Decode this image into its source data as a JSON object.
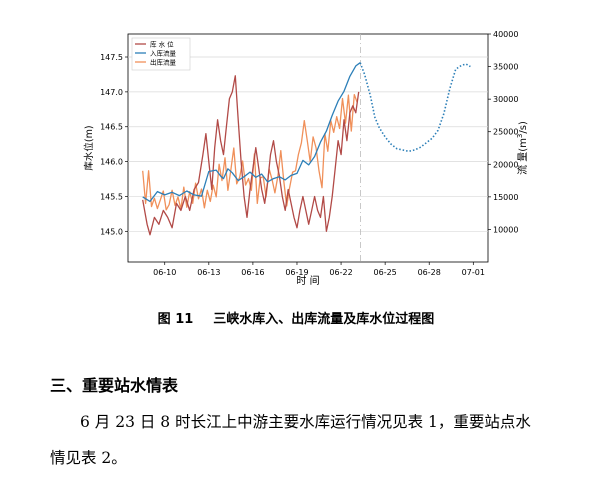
{
  "figure": {
    "number": "图 11",
    "title": "三峡水库入、出库流量及库水位过程图"
  },
  "section_heading": "三、重要站水情表",
  "paragraph_line1": "6 月 23 日 8 时长江上中游主要水库运行情况见表 1，重要站点水",
  "paragraph_line2": "情见表 2。",
  "chart_data": {
    "type": "line",
    "xlabel": "时 间",
    "ylabel_left": "库水位(m)",
    "ylabel_right_prefix": "流 量(m",
    "ylabel_right_sup": "3",
    "ylabel_right_suffix": "/s)",
    "x_range_days": [
      7.5,
      32.0
    ],
    "x_ticks": [
      {
        "label": "06-10",
        "day": 10
      },
      {
        "label": "06-13",
        "day": 13
      },
      {
        "label": "06-16",
        "day": 16
      },
      {
        "label": "06-19",
        "day": 19
      },
      {
        "label": "06-22",
        "day": 22
      },
      {
        "label": "06-25",
        "day": 25
      },
      {
        "label": "06-28",
        "day": 28
      },
      {
        "label": "07-01",
        "day": 31
      }
    ],
    "ylim_left": [
      144.56,
      147.83
    ],
    "yticks_left": [
      "145.0",
      "145.5",
      "146.0",
      "146.5",
      "147.0",
      "147.5"
    ],
    "ylim_right": [
      5000,
      40000
    ],
    "yticks_right": [
      "10000",
      "15000",
      "20000",
      "25000",
      "30000",
      "35000",
      "40000"
    ],
    "forecast_start_day": 23.33,
    "grid": true,
    "legend_position": "top-left",
    "colors": {
      "water_level": "#b24a47",
      "inflow": "#2c7fb8",
      "outflow": "#f0905a",
      "forecast": "#2c7fb8"
    },
    "legend": [
      {
        "key": "water_level",
        "label": "库 水 位"
      },
      {
        "key": "inflow",
        "label": "入库流量"
      },
      {
        "key": "outflow",
        "label": "出库流量"
      }
    ],
    "series_water_level": [
      [
        8.5,
        145.45
      ],
      [
        8.8,
        145.1
      ],
      [
        9.0,
        144.95
      ],
      [
        9.3,
        145.2
      ],
      [
        9.6,
        145.1
      ],
      [
        9.9,
        145.3
      ],
      [
        10.2,
        145.2
      ],
      [
        10.5,
        145.05
      ],
      [
        10.8,
        145.4
      ],
      [
        11.1,
        145.3
      ],
      [
        11.4,
        145.5
      ],
      [
        11.7,
        145.3
      ],
      [
        12.0,
        145.6
      ],
      [
        12.3,
        145.7
      ],
      [
        12.6,
        146.1
      ],
      [
        12.8,
        146.4
      ],
      [
        13.0,
        146.0
      ],
      [
        13.2,
        145.6
      ],
      [
        13.4,
        146.2
      ],
      [
        13.6,
        146.6
      ],
      [
        13.8,
        146.3
      ],
      [
        14.0,
        146.1
      ],
      [
        14.2,
        146.5
      ],
      [
        14.4,
        146.9
      ],
      [
        14.6,
        147.0
      ],
      [
        14.8,
        147.23
      ],
      [
        15.0,
        146.6
      ],
      [
        15.2,
        146.0
      ],
      [
        15.4,
        145.5
      ],
      [
        15.6,
        145.2
      ],
      [
        15.8,
        145.6
      ],
      [
        16.0,
        145.9
      ],
      [
        16.2,
        146.2
      ],
      [
        16.4,
        145.9
      ],
      [
        16.6,
        145.6
      ],
      [
        16.8,
        145.4
      ],
      [
        17.0,
        145.7
      ],
      [
        17.2,
        146.1
      ],
      [
        17.4,
        146.3
      ],
      [
        17.6,
        146.0
      ],
      [
        17.8,
        145.8
      ],
      [
        18.0,
        145.5
      ],
      [
        18.2,
        145.3
      ],
      [
        18.4,
        145.6
      ],
      [
        18.6,
        145.4
      ],
      [
        18.8,
        145.2
      ],
      [
        19.0,
        145.05
      ],
      [
        19.2,
        145.3
      ],
      [
        19.4,
        145.5
      ],
      [
        19.6,
        145.3
      ],
      [
        19.8,
        145.1
      ],
      [
        20.0,
        145.3
      ],
      [
        20.2,
        145.5
      ],
      [
        20.4,
        145.3
      ],
      [
        20.6,
        145.2
      ],
      [
        20.8,
        145.5
      ],
      [
        21.0,
        145.0
      ],
      [
        21.2,
        145.2
      ],
      [
        21.4,
        145.5
      ],
      [
        21.6,
        145.9
      ],
      [
        21.8,
        146.3
      ],
      [
        22.0,
        146.1
      ],
      [
        22.2,
        146.6
      ],
      [
        22.4,
        146.3
      ],
      [
        22.6,
        146.7
      ],
      [
        22.8,
        146.8
      ],
      [
        23.0,
        146.7
      ],
      [
        23.2,
        147.0
      ]
    ],
    "series_inflow": [
      [
        8.5,
        15000
      ],
      [
        9.0,
        14300
      ],
      [
        9.5,
        15800
      ],
      [
        10.0,
        15300
      ],
      [
        10.5,
        15700
      ],
      [
        11.0,
        15200
      ],
      [
        11.5,
        15900
      ],
      [
        12.0,
        15300
      ],
      [
        12.5,
        15100
      ],
      [
        13.0,
        18900
      ],
      [
        13.5,
        19100
      ],
      [
        13.8,
        18200
      ],
      [
        14.0,
        17800
      ],
      [
        14.3,
        19300
      ],
      [
        14.6,
        18700
      ],
      [
        15.0,
        17500
      ],
      [
        15.4,
        18100
      ],
      [
        15.8,
        18800
      ],
      [
        16.2,
        18000
      ],
      [
        16.6,
        18500
      ],
      [
        17.0,
        17300
      ],
      [
        17.4,
        17800
      ],
      [
        17.8,
        18100
      ],
      [
        18.2,
        17600
      ],
      [
        18.6,
        18300
      ],
      [
        19.0,
        18600
      ],
      [
        19.4,
        20600
      ],
      [
        19.8,
        19900
      ],
      [
        20.2,
        21200
      ],
      [
        20.6,
        23400
      ],
      [
        21.0,
        25100
      ],
      [
        21.4,
        27500
      ],
      [
        21.8,
        29700
      ],
      [
        22.2,
        31200
      ],
      [
        22.6,
        33500
      ],
      [
        23.0,
        35100
      ],
      [
        23.3,
        35600
      ]
    ],
    "series_outflow": [
      [
        8.5,
        19000
      ],
      [
        8.7,
        14000
      ],
      [
        8.9,
        19000
      ],
      [
        9.1,
        13500
      ],
      [
        9.3,
        14800
      ],
      [
        9.5,
        13200
      ],
      [
        9.7,
        14500
      ],
      [
        9.9,
        15900
      ],
      [
        10.1,
        13000
      ],
      [
        10.3,
        13800
      ],
      [
        10.5,
        16000
      ],
      [
        10.7,
        13700
      ],
      [
        10.9,
        15000
      ],
      [
        11.1,
        13100
      ],
      [
        11.3,
        16500
      ],
      [
        11.5,
        13400
      ],
      [
        11.7,
        15800
      ],
      [
        11.9,
        14000
      ],
      [
        12.1,
        17100
      ],
      [
        12.3,
        14700
      ],
      [
        12.5,
        16200
      ],
      [
        12.7,
        13300
      ],
      [
        12.9,
        16000
      ],
      [
        13.1,
        14300
      ],
      [
        13.3,
        16800
      ],
      [
        13.5,
        15000
      ],
      [
        13.7,
        20000
      ],
      [
        13.9,
        17500
      ],
      [
        14.1,
        21000
      ],
      [
        14.3,
        16000
      ],
      [
        14.5,
        19200
      ],
      [
        14.7,
        22500
      ],
      [
        14.9,
        17000
      ],
      [
        15.1,
        18000
      ],
      [
        15.3,
        20500
      ],
      [
        15.5,
        16800
      ],
      [
        15.7,
        17800
      ],
      [
        15.9,
        16000
      ],
      [
        16.1,
        21600
      ],
      [
        16.3,
        14000
      ],
      [
        16.5,
        17900
      ],
      [
        16.7,
        18100
      ],
      [
        16.9,
        15000
      ],
      [
        17.1,
        19300
      ],
      [
        17.3,
        17700
      ],
      [
        17.5,
        15600
      ],
      [
        17.7,
        18200
      ],
      [
        17.9,
        22100
      ],
      [
        18.1,
        17400
      ],
      [
        18.3,
        13600
      ],
      [
        18.5,
        16400
      ],
      [
        18.7,
        18800
      ],
      [
        18.9,
        19000
      ],
      [
        19.1,
        21500
      ],
      [
        19.3,
        23300
      ],
      [
        19.5,
        26700
      ],
      [
        19.7,
        23600
      ],
      [
        19.9,
        20400
      ],
      [
        20.1,
        24200
      ],
      [
        20.3,
        22500
      ],
      [
        20.5,
        19000
      ],
      [
        20.7,
        16400
      ],
      [
        20.9,
        24700
      ],
      [
        21.1,
        22000
      ],
      [
        21.3,
        26700
      ],
      [
        21.5,
        24900
      ],
      [
        21.7,
        27300
      ],
      [
        21.9,
        25500
      ],
      [
        22.1,
        30100
      ],
      [
        22.3,
        26300
      ],
      [
        22.5,
        30600
      ],
      [
        22.7,
        25100
      ],
      [
        22.9,
        30700
      ],
      [
        23.1,
        29500
      ]
    ],
    "series_forecast": [
      [
        23.3,
        35600
      ],
      [
        23.6,
        33800
      ],
      [
        24.0,
        30500
      ],
      [
        24.3,
        27200
      ],
      [
        24.6,
        25600
      ],
      [
        25.0,
        24200
      ],
      [
        25.4,
        23100
      ],
      [
        25.8,
        22400
      ],
      [
        26.2,
        22200
      ],
      [
        26.6,
        22000
      ],
      [
        27.0,
        22200
      ],
      [
        27.4,
        22600
      ],
      [
        27.8,
        23300
      ],
      [
        28.2,
        24000
      ],
      [
        28.6,
        25200
      ],
      [
        29.0,
        27800
      ],
      [
        29.4,
        31600
      ],
      [
        29.8,
        34600
      ],
      [
        30.2,
        35200
      ],
      [
        30.5,
        35400
      ],
      [
        30.8,
        35000
      ]
    ]
  }
}
